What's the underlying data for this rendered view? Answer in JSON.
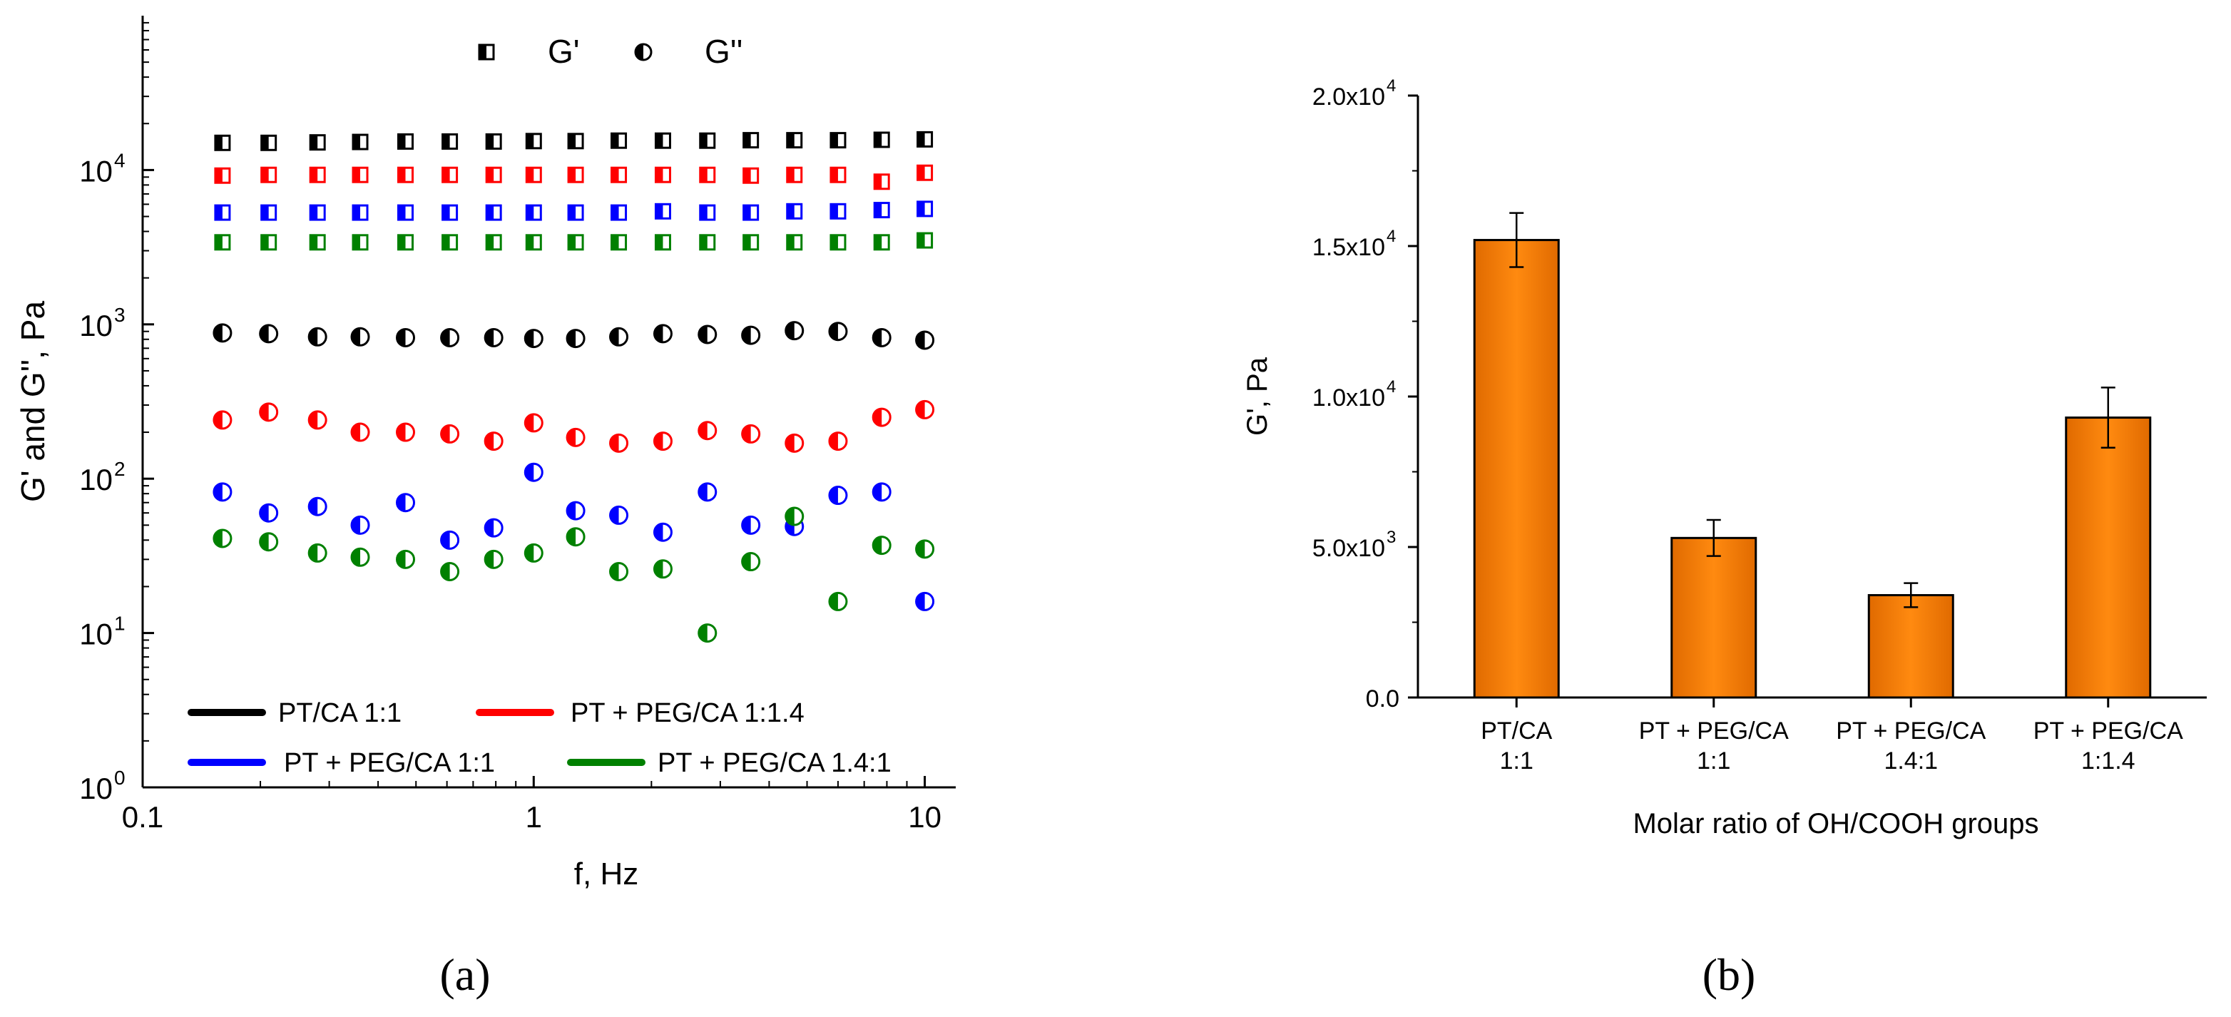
{
  "figure": {
    "panels": [
      "(a)",
      "(b)"
    ]
  },
  "chart_data": [
    {
      "id": "a",
      "type": "scatter",
      "panel_label": "(a)",
      "xlabel": "f, Hz",
      "ylabel": "G' and G'', Pa",
      "xscale": "log",
      "yscale": "log",
      "xlim": [
        0.1,
        12
      ],
      "ylim": [
        1,
        100000
      ],
      "xticks": [
        0.1,
        1,
        10
      ],
      "xtick_labels": [
        "0.1",
        "1",
        "10"
      ],
      "yticks": [
        1,
        10,
        100,
        1000,
        10000
      ],
      "ytick_bases": [
        "10",
        "10",
        "10",
        "10",
        "10"
      ],
      "ytick_exps": [
        "0",
        "1",
        "2",
        "3",
        "4"
      ],
      "marker_legend": [
        {
          "symbol": "half-filled-square",
          "label": "G'"
        },
        {
          "symbol": "half-filled-circle",
          "label": "G''"
        }
      ],
      "x": [
        0.16,
        0.21,
        0.28,
        0.36,
        0.47,
        0.61,
        0.79,
        1.0,
        1.28,
        1.65,
        2.14,
        2.78,
        3.59,
        4.64,
        6.0,
        7.76,
        10.0
      ],
      "series": [
        {
          "name": "PT/CA 1:1",
          "color": "#000000",
          "G_prime": [
            15000,
            15000,
            15100,
            15200,
            15300,
            15300,
            15300,
            15400,
            15400,
            15500,
            15500,
            15500,
            15600,
            15600,
            15600,
            15700,
            15800
          ],
          "G_double_prime": [
            880,
            870,
            830,
            830,
            820,
            820,
            820,
            810,
            810,
            830,
            870,
            860,
            850,
            910,
            900,
            820,
            790
          ]
        },
        {
          "name": "PT + PEG/CA 1:1.4",
          "color": "#ff0000",
          "G_prime": [
            9200,
            9300,
            9300,
            9300,
            9300,
            9300,
            9300,
            9300,
            9300,
            9300,
            9300,
            9300,
            9200,
            9300,
            9300,
            8400,
            9600
          ],
          "G_double_prime": [
            240,
            270,
            240,
            200,
            200,
            195,
            175,
            230,
            185,
            170,
            175,
            205,
            195,
            170,
            175,
            250,
            280
          ]
        },
        {
          "name": "PT + PEG/CA 1:1",
          "color": "#0000ff",
          "G_prime": [
            5300,
            5300,
            5300,
            5300,
            5300,
            5300,
            5300,
            5300,
            5300,
            5300,
            5400,
            5300,
            5300,
            5400,
            5400,
            5500,
            5600
          ],
          "G_double_prime": [
            82,
            60,
            66,
            50,
            70,
            40,
            48,
            110,
            62,
            58,
            45,
            82,
            50,
            49,
            78,
            82,
            16
          ]
        },
        {
          "name": "PT + PEG/CA 1.4:1",
          "color": "#008000",
          "G_prime": [
            3400,
            3400,
            3400,
            3400,
            3400,
            3400,
            3400,
            3400,
            3400,
            3400,
            3400,
            3400,
            3400,
            3400,
            3400,
            3400,
            3500
          ],
          "G_double_prime": [
            41,
            39,
            33,
            31,
            30,
            25,
            30,
            33,
            42,
            25,
            26,
            10,
            29,
            57,
            16,
            37,
            35
          ]
        }
      ]
    },
    {
      "id": "b",
      "type": "bar",
      "panel_label": "(b)",
      "xlabel": "Molar ratio of OH/COOH groups",
      "ylabel": "G', Pa",
      "ylim": [
        0,
        20000
      ],
      "yticks": [
        0,
        5000,
        10000,
        15000,
        20000
      ],
      "ytick_labels": [
        "0.0",
        "5.0x10",
        "1.0x10",
        "1.5x10",
        "2.0x10"
      ],
      "ytick_exps": [
        "",
        "3",
        "4",
        "4",
        "4"
      ],
      "categories": [
        [
          "PT/CA",
          "1:1"
        ],
        [
          "PT + PEG/CA",
          "1:1"
        ],
        [
          "PT + PEG/CA",
          "1.4:1"
        ],
        [
          "PT + PEG/CA",
          "1:1.4"
        ]
      ],
      "values": [
        15200,
        5300,
        3400,
        9300
      ],
      "errors": [
        900,
        600,
        400,
        1000
      ],
      "bar_color": "#ff8000"
    }
  ]
}
